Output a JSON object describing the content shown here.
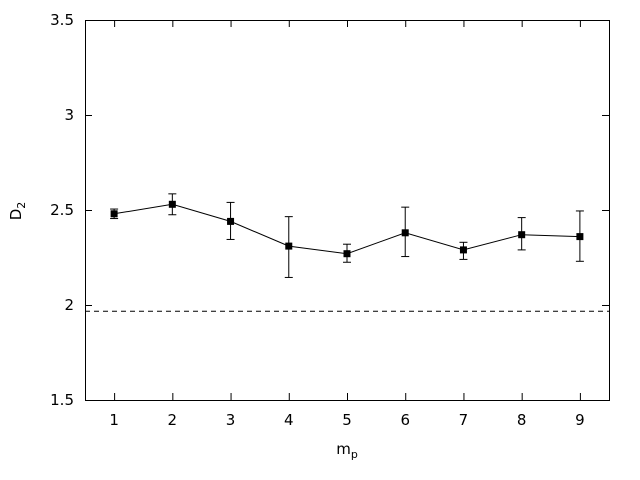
{
  "chart_data": {
    "type": "line",
    "xlabel_base": "m",
    "xlabel_sub": "p",
    "ylabel_base": "D",
    "ylabel_sub": "2",
    "xlim": [
      0.5,
      9.5
    ],
    "ylim": [
      1.5,
      3.5
    ],
    "xticks": [
      "1",
      "2",
      "3",
      "4",
      "5",
      "6",
      "7",
      "8",
      "9"
    ],
    "yticks": [
      "1.5",
      "2",
      "2.5",
      "3",
      "3.5"
    ],
    "grid": false,
    "legend": "none",
    "series": [
      {
        "x": [
          1,
          2,
          3,
          4,
          5,
          6,
          7,
          8,
          9
        ],
        "y": [
          2.48,
          2.53,
          2.44,
          2.31,
          2.27,
          2.38,
          2.29,
          2.37,
          2.36
        ],
        "err_low": [
          2.455,
          2.475,
          2.345,
          2.145,
          2.225,
          2.255,
          2.24,
          2.29,
          2.23
        ],
        "err_high": [
          2.505,
          2.585,
          2.54,
          2.465,
          2.32,
          2.515,
          2.33,
          2.46,
          2.495
        ],
        "marker": "square",
        "color": "#000000"
      }
    ],
    "reference_line": {
      "y": 1.97,
      "style": "dashed",
      "color": "#000000"
    }
  }
}
